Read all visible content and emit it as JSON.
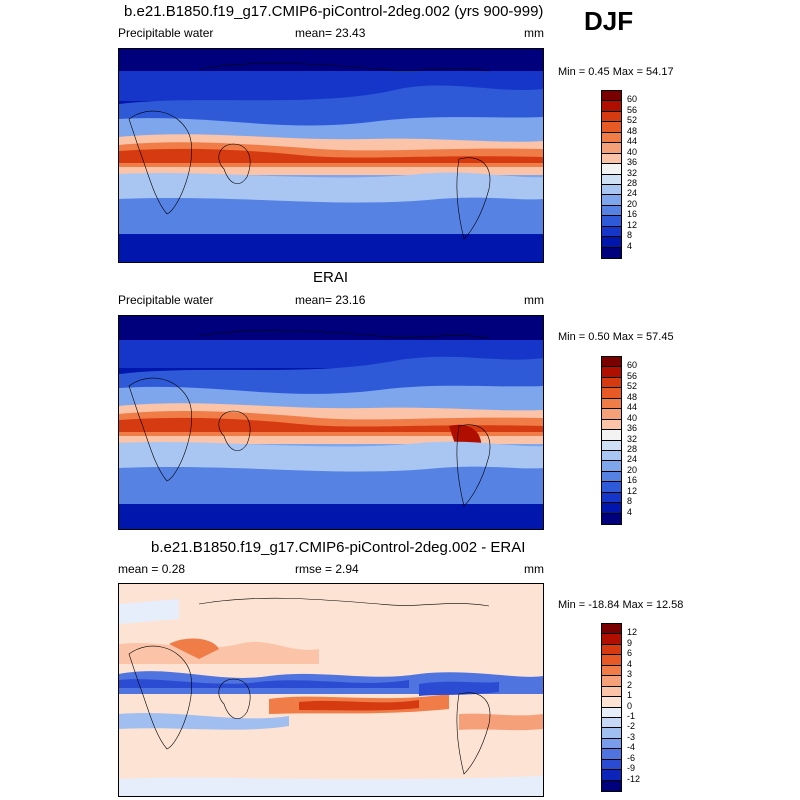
{
  "season": "DJF",
  "panels": [
    {
      "title": "b.e21.B1850.f19_g17.CMIP6-piControl-2deg.002 (yrs 900-999)",
      "left_label": "Precipitable water",
      "center_label": "mean=  23.43",
      "units": "mm",
      "minmax": "Min =   0.45 Max =  54.17",
      "colorbar": {
        "labels": [
          "60",
          "56",
          "52",
          "48",
          "44",
          "40",
          "36",
          "32",
          "28",
          "24",
          "20",
          "16",
          "12",
          "8",
          "4"
        ],
        "colors": [
          "#7a0000",
          "#b00f00",
          "#d63a10",
          "#e85a25",
          "#f07d48",
          "#f6a07a",
          "#fbc4a8",
          "#f3f3f3",
          "#cfe0f5",
          "#a9c6f2",
          "#7ea6ec",
          "#5682e4",
          "#2e5ad8",
          "#1536c8",
          "#0016ad",
          "#00007c"
        ]
      }
    },
    {
      "title": "ERAI",
      "left_label": "Precipitable water",
      "center_label": "mean=  23.16",
      "units": "mm",
      "minmax": "Min =   0.50 Max =  57.45",
      "colorbar": {
        "labels": [
          "60",
          "56",
          "52",
          "48",
          "44",
          "40",
          "36",
          "32",
          "28",
          "24",
          "20",
          "16",
          "12",
          "8",
          "4"
        ],
        "colors": [
          "#7a0000",
          "#b00f00",
          "#d63a10",
          "#e85a25",
          "#f07d48",
          "#f6a07a",
          "#fbc4a8",
          "#f3f3f3",
          "#cfe0f5",
          "#a9c6f2",
          "#7ea6ec",
          "#5682e4",
          "#2e5ad8",
          "#1536c8",
          "#0016ad",
          "#00007c"
        ]
      }
    },
    {
      "title": "b.e21.B1850.f19_g17.CMIP6-piControl-2deg.002 - ERAI",
      "left_label": "mean =   0.28",
      "center_label": "rmse =   2.94",
      "units": "mm",
      "minmax": "Min = -18.84 Max =  12.58",
      "colorbar": {
        "labels": [
          "12",
          "9",
          "6",
          "4",
          "3",
          "2",
          "1",
          "0",
          "-1",
          "-2",
          "-3",
          "-4",
          "-6",
          "-9",
          "-12"
        ],
        "colors": [
          "#7a0000",
          "#b00f00",
          "#d63a10",
          "#e85a25",
          "#f07d48",
          "#f6a07a",
          "#fbc4a8",
          "#fde3d3",
          "#e6eefb",
          "#c6d8f5",
          "#a0bef0",
          "#7a9deb",
          "#4f74e0",
          "#2a4bd2",
          "#0d24b8",
          "#00007c"
        ]
      }
    }
  ]
}
